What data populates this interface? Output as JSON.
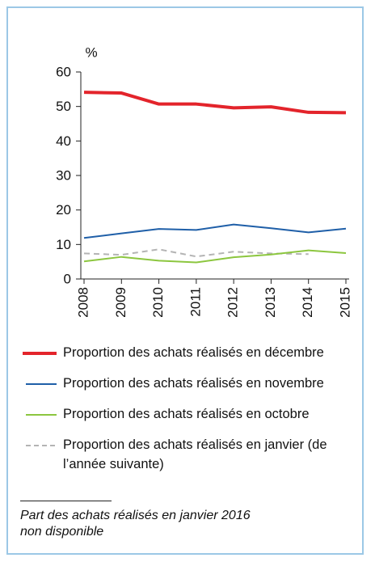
{
  "chart_data": {
    "type": "line",
    "y_label": "%",
    "categories": [
      "2008",
      "2009",
      "2010",
      "2011",
      "2012",
      "2013",
      "2014",
      "2015"
    ],
    "ylim": [
      0,
      60
    ],
    "yticks": [
      0,
      10,
      20,
      30,
      40,
      50,
      60
    ],
    "series": [
      {
        "name": "Proportion des achats réalisés en décembre",
        "color": "#e3242b",
        "values": [
          54.1,
          53.9,
          50.7,
          50.7,
          49.6,
          49.9,
          48.3,
          48.2
        ]
      },
      {
        "name": "Proportion des achats réalisés en novembre",
        "color": "#1f5fa8",
        "values": [
          11.9,
          13.2,
          14.5,
          14.2,
          15.8,
          14.7,
          13.5,
          14.6
        ]
      },
      {
        "name": "Proportion des achats réalisés en octobre",
        "color": "#8cc63f",
        "values": [
          5.1,
          6.4,
          5.3,
          4.8,
          6.3,
          7.1,
          8.3,
          7.5
        ]
      },
      {
        "name": "Proportion des achats réalisés en janvier (de l’année suivante)",
        "color": "#b4b4b4",
        "dashed": true,
        "values": [
          7.4,
          7.0,
          8.6,
          6.5,
          7.9,
          7.4,
          7.2,
          null
        ]
      }
    ],
    "footnote": "Part des achats réalisés en janvier 2016 non disponible"
  }
}
